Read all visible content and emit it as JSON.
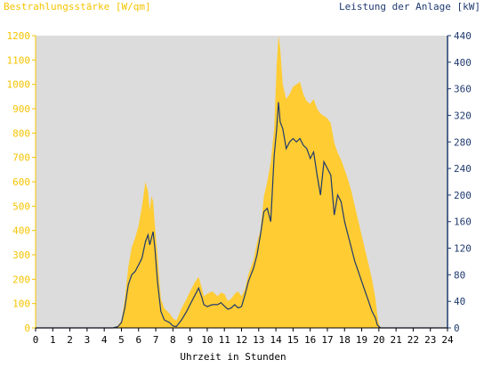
{
  "chart_data": {
    "type": "area",
    "left_axis_title": "Bestrahlungsstärke [W/qm]",
    "right_axis_title": "Leistung der Anlage [kW]",
    "xlabel": "Uhrzeit in Stunden",
    "xlim": [
      0,
      24
    ],
    "x_ticks": [
      "0",
      "1",
      "2",
      "3",
      "4",
      "5",
      "6",
      "7",
      "8",
      "9",
      "10",
      "11",
      "12",
      "13",
      "14",
      "15",
      "16",
      "17",
      "18",
      "19",
      "20",
      "21",
      "22",
      "23",
      "24"
    ],
    "left_ylim": [
      0,
      1200
    ],
    "left_ticks": [
      "0",
      "100",
      "200",
      "300",
      "400",
      "500",
      "600",
      "700",
      "800",
      "900",
      "1000",
      "1100",
      "1200"
    ],
    "right_ylim": [
      0,
      440
    ],
    "right_ticks": [
      "0",
      "40",
      "80",
      "120",
      "160",
      "200",
      "240",
      "280",
      "320",
      "360",
      "400",
      "440"
    ],
    "colors": {
      "plot_background": "#dcdcdc",
      "irradiance_fill": "#ffcc33",
      "power_line": "#1f3a6e",
      "left_axis": "#f5c400",
      "right_axis": "#1f3a6e"
    },
    "series": [
      {
        "name": "Bestrahlungsstärke [W/qm]",
        "axis": "left",
        "style": "area",
        "x": [
          0,
          4.5,
          4.8,
          5.0,
          5.2,
          5.4,
          5.6,
          5.8,
          6.0,
          6.2,
          6.4,
          6.55,
          6.65,
          6.75,
          6.85,
          6.95,
          7.1,
          7.3,
          7.5,
          7.8,
          8.0,
          8.2,
          8.5,
          8.8,
          9.0,
          9.3,
          9.5,
          9.7,
          9.8,
          10.0,
          10.3,
          10.6,
          10.8,
          11.0,
          11.2,
          11.4,
          11.6,
          11.8,
          12.0,
          12.2,
          12.4,
          12.7,
          12.9,
          13.1,
          13.3,
          13.5,
          13.7,
          13.9,
          14.05,
          14.15,
          14.25,
          14.4,
          14.6,
          14.8,
          15.0,
          15.2,
          15.4,
          15.6,
          15.8,
          16.0,
          16.2,
          16.4,
          16.6,
          16.8,
          17.0,
          17.2,
          17.4,
          17.6,
          17.8,
          18.0,
          18.2,
          18.4,
          18.6,
          18.8,
          19.0,
          19.2,
          19.4,
          19.6,
          19.8,
          19.9,
          20.0,
          20.1,
          20.3,
          24
        ],
        "values": [
          0,
          0,
          10,
          30,
          120,
          250,
          330,
          370,
          420,
          500,
          600,
          560,
          480,
          540,
          520,
          420,
          300,
          120,
          80,
          60,
          40,
          30,
          80,
          120,
          150,
          190,
          210,
          160,
          130,
          140,
          150,
          130,
          145,
          140,
          110,
          120,
          140,
          150,
          130,
          160,
          220,
          280,
          350,
          400,
          540,
          600,
          680,
          820,
          1080,
          1200,
          1150,
          1000,
          940,
          960,
          990,
          1000,
          1010,
          960,
          930,
          920,
          940,
          900,
          880,
          870,
          860,
          840,
          760,
          720,
          690,
          650,
          610,
          560,
          500,
          440,
          380,
          320,
          260,
          200,
          120,
          60,
          20,
          0,
          0,
          0
        ]
      },
      {
        "name": "Leistung der Anlage [kW]",
        "axis": "right",
        "style": "line",
        "x": [
          0,
          4.5,
          4.8,
          5.0,
          5.2,
          5.4,
          5.6,
          5.8,
          6.0,
          6.2,
          6.4,
          6.55,
          6.65,
          6.75,
          6.85,
          6.95,
          7.1,
          7.3,
          7.5,
          7.8,
          8.0,
          8.2,
          8.5,
          8.8,
          9.0,
          9.3,
          9.5,
          9.7,
          9.8,
          10.0,
          10.3,
          10.6,
          10.8,
          11.0,
          11.2,
          11.4,
          11.6,
          11.8,
          12.0,
          12.2,
          12.4,
          12.7,
          12.9,
          13.1,
          13.3,
          13.5,
          13.7,
          13.9,
          14.05,
          14.15,
          14.25,
          14.4,
          14.6,
          14.8,
          15.0,
          15.2,
          15.4,
          15.6,
          15.8,
          16.0,
          16.2,
          16.4,
          16.6,
          16.8,
          17.0,
          17.2,
          17.4,
          17.6,
          17.8,
          18.0,
          18.2,
          18.4,
          18.6,
          18.8,
          19.0,
          19.2,
          19.4,
          19.6,
          19.8,
          19.9,
          20.0,
          20.1,
          20.3,
          24
        ],
        "values": [
          0,
          0,
          2,
          8,
          30,
          65,
          80,
          85,
          95,
          105,
          130,
          140,
          125,
          135,
          145,
          120,
          70,
          25,
          12,
          8,
          3,
          2,
          12,
          25,
          35,
          50,
          60,
          45,
          35,
          32,
          35,
          35,
          38,
          33,
          28,
          30,
          35,
          30,
          32,
          50,
          70,
          90,
          110,
          140,
          175,
          180,
          160,
          260,
          300,
          340,
          310,
          300,
          270,
          280,
          285,
          280,
          285,
          275,
          270,
          255,
          265,
          230,
          200,
          250,
          240,
          230,
          170,
          200,
          190,
          160,
          140,
          120,
          100,
          85,
          70,
          55,
          40,
          25,
          15,
          5,
          2,
          0,
          0,
          0
        ]
      }
    ]
  }
}
